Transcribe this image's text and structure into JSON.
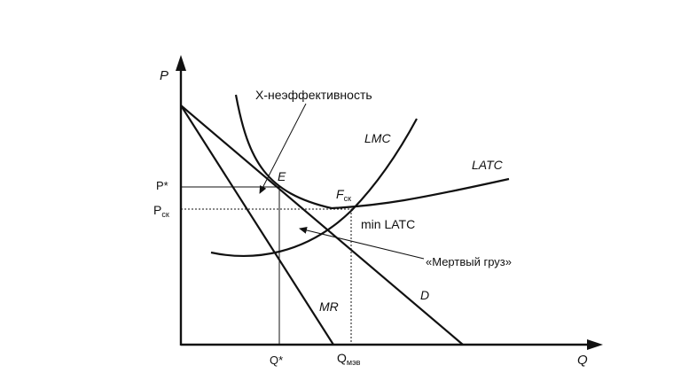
{
  "axes": {
    "y_label": "P",
    "x_label": "Q"
  },
  "price_ticks": {
    "p_star": "P*",
    "p_ck_main": "P",
    "p_ck_sub": "ск"
  },
  "quantity_ticks": {
    "q_star": "Q*",
    "q_mev_main": "Q",
    "q_mev_sub": "мэв"
  },
  "curves": {
    "lmc": "LMC",
    "latc": "LATC",
    "mr": "MR",
    "d": "D"
  },
  "points": {
    "e": "E",
    "f_main": "F",
    "f_sub": "ск",
    "min_latc": "min LATC"
  },
  "annotations": {
    "x_inefficiency": "X-неэффективность",
    "deadweight": "«Мертвый груз»"
  }
}
